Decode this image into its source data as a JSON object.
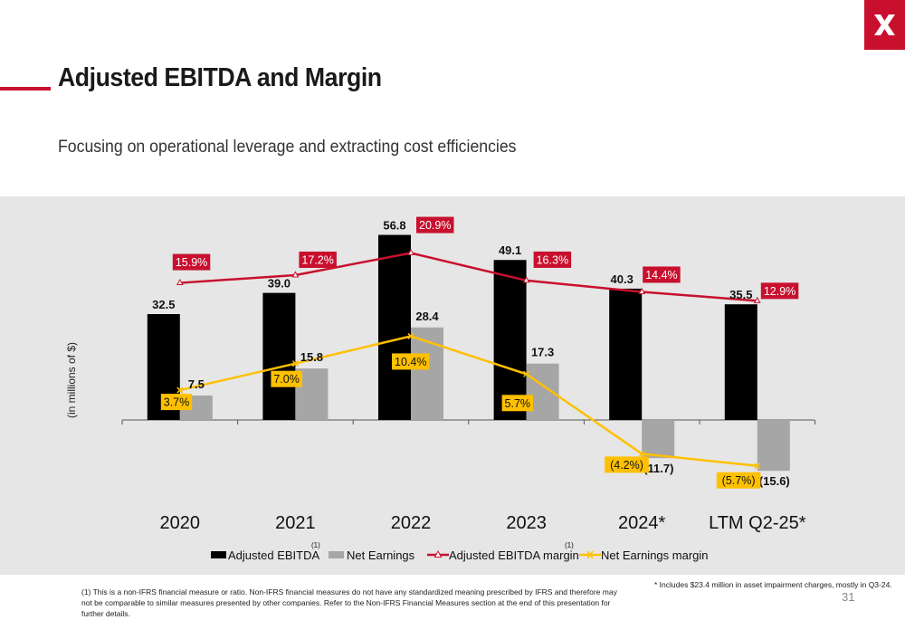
{
  "header": {
    "title": "Adjusted EBITDA and Margin",
    "subtitle": "Focusing on operational leverage and extracting cost efficiencies",
    "brand_color": "#c8102e",
    "logo_icon": "x-logo-icon"
  },
  "chart_data": {
    "type": "bar",
    "categories": [
      "2020",
      "2021",
      "2022",
      "2023",
      "2024*",
      "LTM Q2-25*"
    ],
    "ylabel": "(in millions of $)",
    "series": [
      {
        "name": "Adjusted EBITDA",
        "kind": "bar",
        "color": "#000000",
        "values": [
          32.5,
          39.0,
          56.8,
          49.1,
          40.3,
          35.5
        ],
        "labels": [
          "32.5",
          "39.0",
          "56.8",
          "49.1",
          "40.3",
          "35.5"
        ]
      },
      {
        "name": "Net Earnings",
        "kind": "bar",
        "color": "#a6a6a6",
        "values": [
          7.5,
          15.8,
          28.4,
          17.3,
          -11.7,
          -15.6
        ],
        "labels": [
          "7.5",
          "15.8",
          "28.4",
          "17.3",
          "(11.7)",
          "(15.6)"
        ]
      },
      {
        "name": "Adjusted EBITDA margin",
        "kind": "line",
        "color": "#c8102e",
        "values": [
          15.9,
          17.2,
          20.9,
          16.3,
          14.4,
          12.9
        ],
        "labels": [
          "15.9%",
          "17.2%",
          "20.9%",
          "16.3%",
          "14.4%",
          "12.9%"
        ]
      },
      {
        "name": "Net Earnings margin",
        "kind": "line",
        "color": "#ffc000",
        "values": [
          3.7,
          7.0,
          10.4,
          5.7,
          -4.2,
          -5.7
        ],
        "labels": [
          "3.7%",
          "7.0%",
          "10.4%",
          "5.7%",
          "(4.2%)",
          "(5.7%)"
        ]
      }
    ],
    "legend": {
      "placement": "bottom",
      "items": [
        "Adjusted EBITDA",
        "Net Earnings",
        "Adjusted EBITDA margin",
        "Net Earnings margin"
      ],
      "superscript": "(1)"
    },
    "grid": false
  },
  "footer": {
    "note1": "(1) This is a non-IFRS financial measure or ratio. Non-IFRS financial measures do not have any standardized meaning prescribed by IFRS and therefore may not be comparable to similar measures presented by other companies. Refer to the Non-IFRS Financial Measures section at the end of this presentation for further details.",
    "note2": "* Includes $23.4 million in asset impairment charges, mostly in Q3-24.",
    "page_number": "31",
    "dot": "."
  }
}
